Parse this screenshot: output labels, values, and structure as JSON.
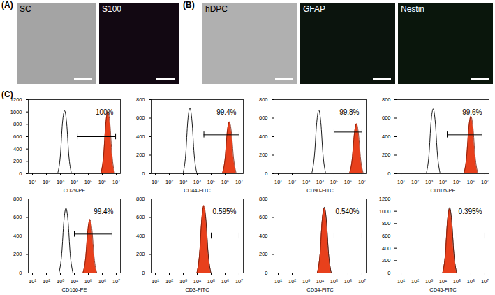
{
  "panels": {
    "A": {
      "label": "(A)",
      "images": [
        "SC",
        "S100"
      ]
    },
    "B": {
      "label": "(B)",
      "images": [
        "hDPC",
        "GFAP",
        "Nestin"
      ]
    },
    "C": {
      "label": "(C)"
    }
  },
  "chart_data": [
    {
      "type": "histogram",
      "x_label": "CD29-PE",
      "log": "x",
      "xlim": [
        5,
        20000000
      ],
      "xticks": [
        {
          "value": 10,
          "label": "10¹"
        },
        {
          "value": 100,
          "label": "10²"
        },
        {
          "value": 1000,
          "label": "10³"
        },
        {
          "value": 10000,
          "label": "10⁴"
        },
        {
          "value": 100000,
          "label": "10⁵"
        },
        {
          "value": 1000000,
          "label": "10⁶"
        },
        {
          "value": 10000000,
          "label": "10⁷"
        }
      ],
      "ylim": [
        0,
        1200
      ],
      "yticks": [
        0,
        200,
        400,
        600,
        800,
        1000,
        1200
      ],
      "series": [
        {
          "type": "line",
          "color": "#000000",
          "x": [
            630,
            1000,
            1400,
            2000,
            2800,
            4000,
            6300
          ],
          "values": [
            0,
            300,
            820,
            1020,
            820,
            300,
            0
          ]
        },
        {
          "type": "area",
          "color": "#e8401c",
          "x": [
            790000,
            1250000,
            1770000,
            2500000,
            3530000,
            5000000,
            7900000
          ],
          "values": [
            0,
            300,
            810,
            1010,
            810,
            300,
            0
          ]
        }
      ],
      "gate": {
        "x": [
          16000,
          9000000
        ],
        "y": 600,
        "label": "100%"
      }
    },
    {
      "type": "histogram",
      "x_label": "CD44-FITC",
      "log": "x",
      "xlim": [
        5,
        20000000
      ],
      "xticks": [
        {
          "value": 10,
          "label": "10¹"
        },
        {
          "value": 100,
          "label": "10²"
        },
        {
          "value": 1000,
          "label": "10³"
        },
        {
          "value": 10000,
          "label": "10⁴"
        },
        {
          "value": 100000,
          "label": "10⁵"
        },
        {
          "value": 1000000,
          "label": "10⁶"
        },
        {
          "value": 10000000,
          "label": "10⁷"
        }
      ],
      "ylim": [
        0,
        800
      ],
      "yticks": [
        0,
        200,
        400,
        600,
        800
      ],
      "series": [
        {
          "type": "line",
          "color": "#000000",
          "x": [
            950,
            1500,
            2100,
            3000,
            4200,
            6000,
            9500
          ],
          "values": [
            0,
            210,
            570,
            710,
            570,
            210,
            0
          ]
        },
        {
          "type": "area",
          "color": "#e8401c",
          "x": [
            630000,
            1000000,
            1400000,
            2000000,
            2800000,
            4000000,
            6300000
          ],
          "values": [
            0,
            170,
            450,
            560,
            450,
            170,
            0
          ]
        }
      ],
      "gate": {
        "x": [
          30000,
          10000000
        ],
        "y": 420,
        "label": "99.4%"
      }
    },
    {
      "type": "histogram",
      "x_label": "CD90-FITC",
      "log": "x",
      "xlim": [
        5,
        20000000
      ],
      "xticks": [
        {
          "value": 10,
          "label": "10¹"
        },
        {
          "value": 100,
          "label": "10²"
        },
        {
          "value": 1000,
          "label": "10³"
        },
        {
          "value": 10000,
          "label": "10⁴"
        },
        {
          "value": 100000,
          "label": "10⁵"
        },
        {
          "value": 1000000,
          "label": "10⁶"
        },
        {
          "value": 10000000,
          "label": "10⁷"
        }
      ],
      "ylim": [
        0,
        800
      ],
      "yticks": [
        0,
        200,
        400,
        600,
        800
      ],
      "series": [
        {
          "type": "line",
          "color": "#000000",
          "x": [
            2500,
            4000,
            5700,
            8000,
            11300,
            16000,
            25300
          ],
          "values": [
            0,
            210,
            550,
            690,
            550,
            210,
            0
          ]
        },
        {
          "type": "area",
          "color": "#e8401c",
          "x": [
            1260000,
            2000000,
            2830000,
            4000000,
            5650000,
            8000000,
            12600000
          ],
          "values": [
            0,
            160,
            430,
            540,
            430,
            160,
            0
          ]
        }
      ],
      "gate": {
        "x": [
          100000,
          10000000
        ],
        "y": 450,
        "label": "99.8%"
      }
    },
    {
      "type": "histogram",
      "x_label": "CD105-PE",
      "log": "x",
      "xlim": [
        5,
        20000000
      ],
      "xticks": [
        {
          "value": 10,
          "label": "10¹"
        },
        {
          "value": 100,
          "label": "10²"
        },
        {
          "value": 1000,
          "label": "10³"
        },
        {
          "value": 10000,
          "label": "10⁴"
        },
        {
          "value": 100000,
          "label": "10⁵"
        },
        {
          "value": 1000000,
          "label": "10⁶"
        },
        {
          "value": 10000000,
          "label": "10⁷"
        }
      ],
      "ylim": [
        0,
        800
      ],
      "yticks": [
        0,
        200,
        400,
        600,
        800
      ],
      "series": [
        {
          "type": "line",
          "color": "#000000",
          "x": [
            630,
            1000,
            1400,
            2000,
            2800,
            4000,
            6300
          ],
          "values": [
            0,
            210,
            560,
            700,
            560,
            210,
            0
          ]
        },
        {
          "type": "area",
          "color": "#e8401c",
          "x": [
            316000,
            500000,
            708000,
            1000000,
            1410000,
            2000000,
            3160000
          ],
          "values": [
            0,
            190,
            500,
            620,
            500,
            190,
            0
          ]
        }
      ],
      "gate": {
        "x": [
          20000,
          6300000
        ],
        "y": 420,
        "label": "99.6%"
      }
    },
    {
      "type": "histogram",
      "x_label": "CD166-PE",
      "log": "x",
      "xlim": [
        5,
        20000000
      ],
      "xticks": [
        {
          "value": 10,
          "label": "10¹"
        },
        {
          "value": 100,
          "label": "10²"
        },
        {
          "value": 1000,
          "label": "10³"
        },
        {
          "value": 10000,
          "label": "10⁴"
        },
        {
          "value": 100000,
          "label": "10⁵"
        },
        {
          "value": 1000000,
          "label": "10⁶"
        },
        {
          "value": 10000000,
          "label": "10⁷"
        }
      ],
      "ylim": [
        0,
        800
      ],
      "yticks": [
        0,
        200,
        400,
        600,
        800
      ],
      "series": [
        {
          "type": "line",
          "color": "#000000",
          "x": [
            790,
            1250,
            1770,
            2500,
            3530,
            5000,
            7900
          ],
          "values": [
            0,
            210,
            560,
            700,
            560,
            210,
            0
          ]
        },
        {
          "type": "area",
          "color": "#e8401c",
          "x": [
            41000,
            65000,
            92000,
            130000,
            184000,
            260000,
            410000
          ],
          "values": [
            0,
            170,
            460,
            580,
            460,
            170,
            0
          ]
        }
      ],
      "gate": {
        "x": [
          10000,
          5000000
        ],
        "y": 420,
        "label": "99.4%"
      }
    },
    {
      "type": "histogram",
      "x_label": "CD3-FITC",
      "log": "x",
      "xlim": [
        5,
        20000000
      ],
      "xticks": [
        {
          "value": 10,
          "label": "10¹"
        },
        {
          "value": 100,
          "label": "10²"
        },
        {
          "value": 1000,
          "label": "10³"
        },
        {
          "value": 10000,
          "label": "10⁴"
        },
        {
          "value": 100000,
          "label": "10⁵"
        },
        {
          "value": 1000000,
          "label": "10⁶"
        },
        {
          "value": 10000000,
          "label": "10⁷"
        }
      ],
      "ylim": [
        0,
        800
      ],
      "yticks": [
        0,
        200,
        400,
        600,
        800
      ],
      "series": [
        {
          "type": "line",
          "color": "#000000",
          "x": [
            9500,
            15000,
            21000,
            30000,
            42000,
            60000,
            95000
          ],
          "values": [
            0,
            210,
            560,
            700,
            560,
            210,
            0
          ]
        },
        {
          "type": "area",
          "color": "#e8401c",
          "x": [
            9500,
            15000,
            21000,
            30000,
            42000,
            60000,
            95000
          ],
          "values": [
            0,
            220,
            580,
            730,
            580,
            220,
            0
          ]
        }
      ],
      "gate": {
        "x": [
          100000,
          10000000
        ],
        "y": 400,
        "label": "0.595%"
      }
    },
    {
      "type": "histogram",
      "x_label": "CD34-FITC",
      "log": "x",
      "xlim": [
        5,
        20000000
      ],
      "xticks": [
        {
          "value": 10,
          "label": "10¹"
        },
        {
          "value": 100,
          "label": "10²"
        },
        {
          "value": 1000,
          "label": "10³"
        },
        {
          "value": 10000,
          "label": "10⁴"
        },
        {
          "value": 100000,
          "label": "10⁵"
        },
        {
          "value": 1000000,
          "label": "10⁶"
        },
        {
          "value": 10000000,
          "label": "10⁷"
        }
      ],
      "ylim": [
        0,
        800
      ],
      "yticks": [
        0,
        200,
        400,
        600,
        800
      ],
      "series": [
        {
          "type": "line",
          "color": "#000000",
          "x": [
            6300,
            10000,
            14000,
            20000,
            28000,
            40000,
            63000
          ],
          "values": [
            0,
            210,
            570,
            710,
            570,
            210,
            0
          ]
        },
        {
          "type": "area",
          "color": "#e8401c",
          "x": [
            6300,
            10000,
            14000,
            20000,
            28000,
            40000,
            63000
          ],
          "values": [
            0,
            210,
            560,
            700,
            560,
            210,
            0
          ]
        }
      ],
      "gate": {
        "x": [
          100000,
          10000000
        ],
        "y": 400,
        "label": "0.540%"
      }
    },
    {
      "type": "histogram",
      "x_label": "CD45-FITC",
      "log": "x",
      "xlim": [
        5,
        20000000
      ],
      "xticks": [
        {
          "value": 10,
          "label": "10¹"
        },
        {
          "value": 100,
          "label": "10²"
        },
        {
          "value": 1000,
          "label": "10³"
        },
        {
          "value": 10000,
          "label": "10⁴"
        },
        {
          "value": 100000,
          "label": "10⁵"
        },
        {
          "value": 1000000,
          "label": "10⁶"
        },
        {
          "value": 10000000,
          "label": "10⁷"
        }
      ],
      "ylim": [
        0,
        1200
      ],
      "yticks": [
        0,
        200,
        400,
        600,
        800,
        1000,
        1200
      ],
      "series": [
        {
          "type": "line",
          "color": "#000000",
          "x": [
            9500,
            15000,
            21000,
            30000,
            42000,
            60000,
            95000
          ],
          "values": [
            0,
            320,
            850,
            1060,
            850,
            320,
            0
          ]
        },
        {
          "type": "area",
          "color": "#e8401c",
          "x": [
            9500,
            15000,
            21000,
            30000,
            42000,
            60000,
            95000
          ],
          "values": [
            0,
            310,
            830,
            1040,
            830,
            310,
            0
          ]
        }
      ],
      "gate": {
        "x": [
          100000,
          10000000
        ],
        "y": 600,
        "label": "0.395%"
      }
    }
  ]
}
